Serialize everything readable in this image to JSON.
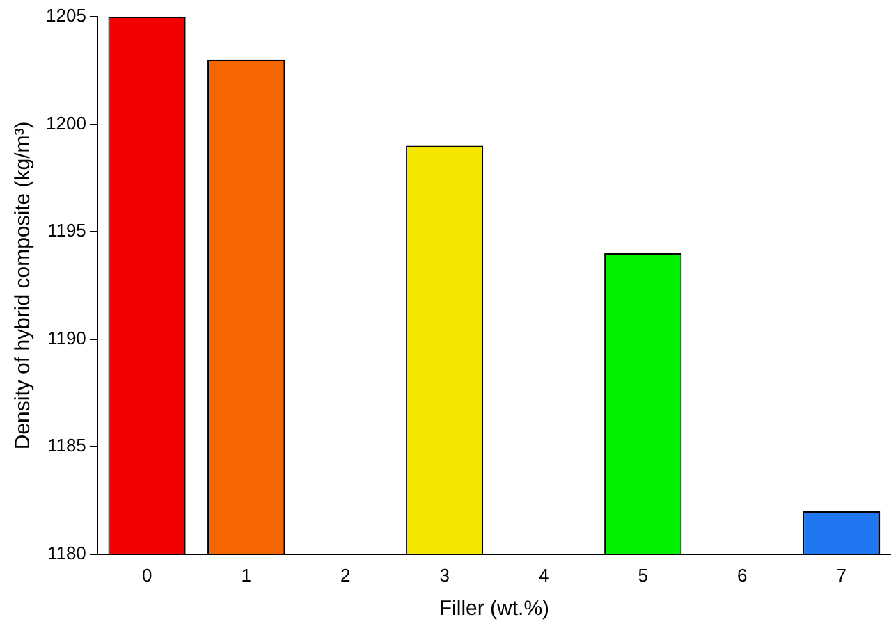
{
  "chart_data": {
    "type": "bar",
    "xlabel": "Filler (wt.%)",
    "ylabel": "Density of hybrid composite (kg/m³)",
    "categories": [
      "0",
      "1",
      "2",
      "3",
      "4",
      "5",
      "6",
      "7"
    ],
    "values": [
      1205,
      1203,
      null,
      1199,
      null,
      1194,
      null,
      1182
    ],
    "colors": [
      "#f20000",
      "#f56600",
      null,
      "#f5e600",
      null,
      "#00f000",
      null,
      "#1f78f2"
    ],
    "ylim": [
      1180,
      1205
    ],
    "yticks": [
      1180,
      1185,
      1190,
      1195,
      1200,
      1205
    ],
    "grid": false,
    "legend": false
  }
}
